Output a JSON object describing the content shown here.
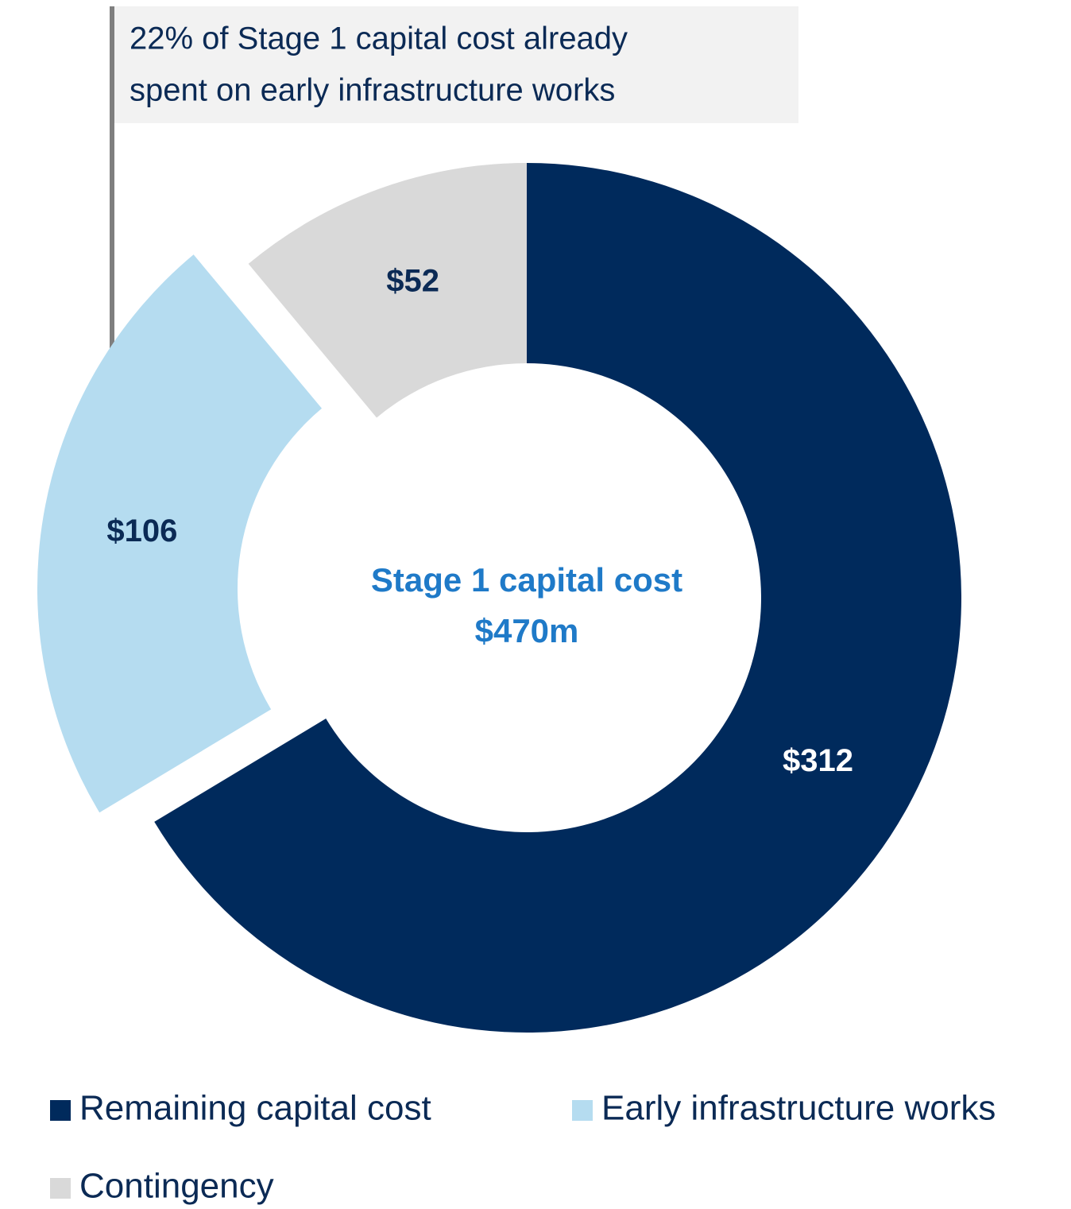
{
  "chart_data": {
    "type": "donut",
    "annotation": [
      "22% of Stage 1 capital cost already",
      "spent on early infrastructure works"
    ],
    "center_label": [
      "Stage 1 capital cost",
      "$470m"
    ],
    "categories": [
      "Remaining capital cost",
      "Early infrastructure works",
      "Contingency"
    ],
    "values": [
      312,
      106,
      52
    ],
    "value_labels": [
      "$312",
      "$106",
      "$52"
    ],
    "colors": [
      "#002a5c",
      "#b5dcf0",
      "#d9d9d9"
    ],
    "exploded": [
      false,
      true,
      false
    ]
  }
}
